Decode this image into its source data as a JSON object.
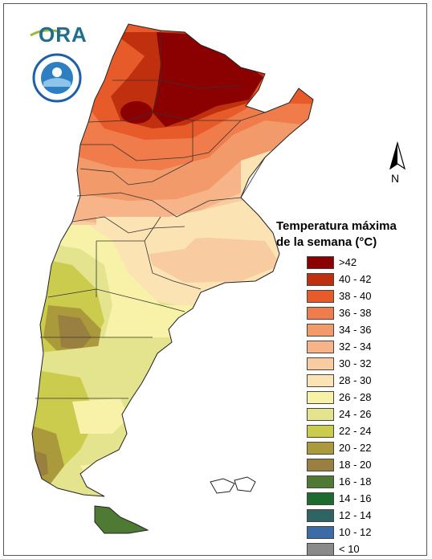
{
  "map": {
    "legend_title_line1": "Temperatura máxima",
    "legend_title_line2": "de la semana (°C)",
    "north_label": "N",
    "logo_text": "ORA",
    "legend": [
      {
        "label": ">42",
        "color": "#8b0000"
      },
      {
        "label": "40 - 42",
        "color": "#c0300f"
      },
      {
        "label": "38 - 40",
        "color": "#e75a2a"
      },
      {
        "label": "36 - 38",
        "color": "#ef7c4a"
      },
      {
        "label": "34 - 36",
        "color": "#f39a6b"
      },
      {
        "label": "32 - 34",
        "color": "#f6b488"
      },
      {
        "label": "30 - 32",
        "color": "#f9cba0"
      },
      {
        "label": "28 - 30",
        "color": "#fbe3b3"
      },
      {
        "label": "26 - 28",
        "color": "#f7f2a8"
      },
      {
        "label": "24 - 26",
        "color": "#e3e48d"
      },
      {
        "label": "22 - 24",
        "color": "#cbcc4e"
      },
      {
        "label": "20 - 22",
        "color": "#ab9a3c"
      },
      {
        "label": "18 - 20",
        "color": "#9a8040"
      },
      {
        "label": "16 - 18",
        "color": "#4e7a33"
      },
      {
        "label": "14 - 16",
        "color": "#1e6b2f"
      },
      {
        "label": "12 - 14",
        "color": "#2f6464"
      },
      {
        "label": "10 - 12",
        "color": "#3c6ca6"
      },
      {
        "label": "< 10",
        "color": "#8a8a8a"
      }
    ]
  }
}
